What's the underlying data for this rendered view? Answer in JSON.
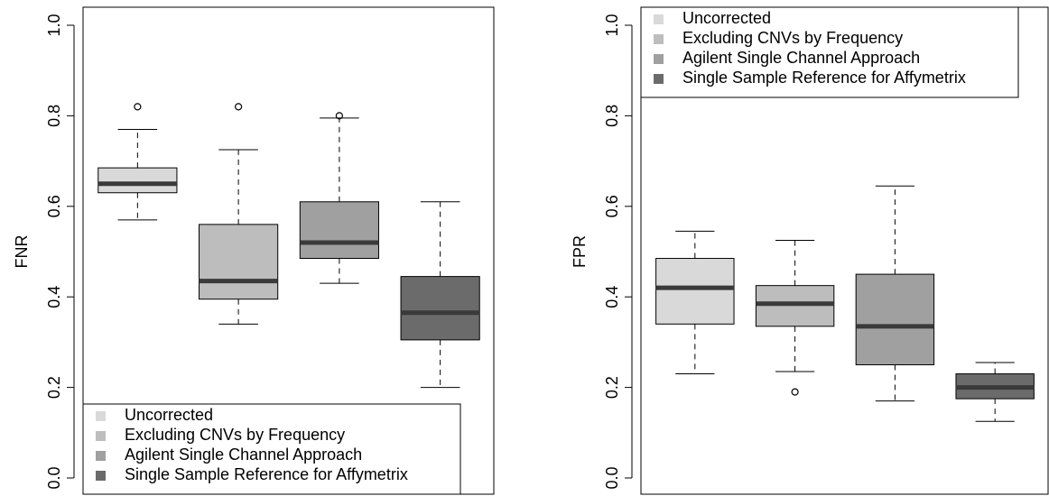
{
  "colors": {
    "Uncorrected": "#d9d9d9",
    "Excluding CNVs by Frequency": "#bdbdbd",
    "Agilent Single Channel Approach": "#a0a0a0",
    "Single Sample Reference for Affymetrix": "#6b6b6b",
    "median": "#3a3a3a"
  },
  "chart_data": [
    {
      "type": "box",
      "ylabel": "FNR",
      "xlabel": "",
      "ylim": [
        0,
        1
      ],
      "yticks": [
        "0.0",
        "0.2",
        "0.4",
        "0.6",
        "0.8",
        "1.0"
      ],
      "legend_position": "bottom-left",
      "legend": [
        "Uncorrected",
        "Excluding CNVs by Frequency",
        "Agilent Single Channel Approach",
        "Single Sample Reference for Affymetrix"
      ],
      "boxes": [
        {
          "group": "Uncorrected",
          "whisker_low": 0.57,
          "q1": 0.63,
          "median": 0.65,
          "q3": 0.685,
          "whisker_high": 0.77,
          "outliers": [
            0.82
          ]
        },
        {
          "group": "Excluding CNVs by Frequency",
          "whisker_low": 0.34,
          "q1": 0.395,
          "median": 0.435,
          "q3": 0.56,
          "whisker_high": 0.725,
          "outliers": [
            0.82
          ]
        },
        {
          "group": "Agilent Single Channel Approach",
          "whisker_low": 0.43,
          "q1": 0.485,
          "median": 0.52,
          "q3": 0.61,
          "whisker_high": 0.795,
          "outliers": [
            0.8
          ]
        },
        {
          "group": "Single Sample Reference for Affymetrix",
          "whisker_low": 0.2,
          "q1": 0.305,
          "median": 0.365,
          "q3": 0.445,
          "whisker_high": 0.61,
          "outliers": []
        }
      ]
    },
    {
      "type": "box",
      "ylabel": "FPR",
      "xlabel": "",
      "ylim": [
        0,
        1
      ],
      "yticks": [
        "0.0",
        "0.2",
        "0.4",
        "0.6",
        "0.8",
        "1.0"
      ],
      "legend_position": "top-left",
      "legend": [
        "Uncorrected",
        "Excluding CNVs by Frequency",
        "Agilent Single Channel Approach",
        "Single Sample Reference for Affymetrix"
      ],
      "boxes": [
        {
          "group": "Uncorrected",
          "whisker_low": 0.23,
          "q1": 0.34,
          "median": 0.42,
          "q3": 0.485,
          "whisker_high": 0.545,
          "outliers": []
        },
        {
          "group": "Excluding CNVs by Frequency",
          "whisker_low": 0.235,
          "q1": 0.335,
          "median": 0.385,
          "q3": 0.425,
          "whisker_high": 0.525,
          "outliers": [
            0.19
          ]
        },
        {
          "group": "Agilent Single Channel Approach",
          "whisker_low": 0.17,
          "q1": 0.25,
          "median": 0.335,
          "q3": 0.45,
          "whisker_high": 0.645,
          "outliers": []
        },
        {
          "group": "Single Sample Reference for Affymetrix",
          "whisker_low": 0.125,
          "q1": 0.175,
          "median": 0.2,
          "q3": 0.23,
          "whisker_high": 0.255,
          "outliers": []
        }
      ]
    }
  ]
}
